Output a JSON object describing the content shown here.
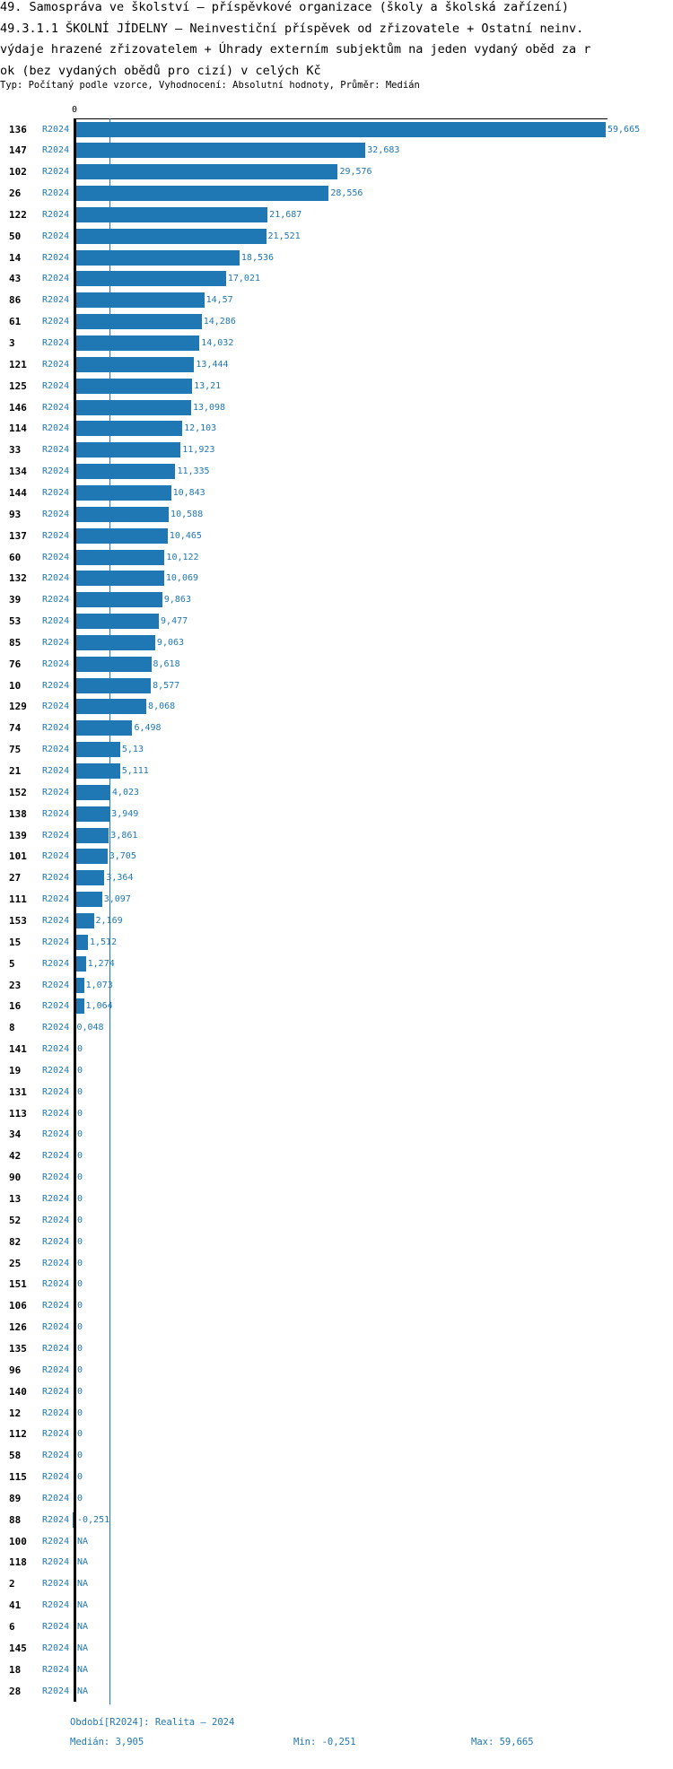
{
  "title_lines": [
    "49. Samospráva ve školství – příspěvkové organizace (školy a školská zařízení)",
    "49.3.1.1 ŠKOLNÍ JÍDELNY – Neinvestiční příspěvek od zřizovatele + Ostatní neinv.",
    "výdaje hrazené zřizovatelem + Úhrady externím subjektům na jeden vydaný oběd za r",
    "ok (bez vydaných obědů pro cizí) v celých Kč"
  ],
  "subtitle": "Typ: Počítaný podle vzorce, Vyhodnocení: Absolutní hodnoty, Průměr: Medián",
  "footer": {
    "period": "Období[R2024]: Realita – 2024",
    "median": "Medián: 3,905",
    "min": "Min: -0,251",
    "max": "Max: 59,665"
  },
  "chart_data": {
    "type": "bar",
    "orientation": "horizontal",
    "axis_zero_label": "0",
    "xlim": [
      -0.251,
      59.665
    ],
    "median": 3.905,
    "colors": {
      "bar": "#1f77b4",
      "text": "#1f77b4"
    },
    "period": "R2024",
    "rows": [
      {
        "id": "136",
        "value": 59.665,
        "label": "59,665"
      },
      {
        "id": "147",
        "value": 32.683,
        "label": "32,683"
      },
      {
        "id": "102",
        "value": 29.576,
        "label": "29,576"
      },
      {
        "id": "26",
        "value": 28.556,
        "label": "28,556"
      },
      {
        "id": "122",
        "value": 21.687,
        "label": "21,687"
      },
      {
        "id": "50",
        "value": 21.521,
        "label": "21,521"
      },
      {
        "id": "14",
        "value": 18.536,
        "label": "18,536"
      },
      {
        "id": "43",
        "value": 17.021,
        "label": "17,021"
      },
      {
        "id": "86",
        "value": 14.57,
        "label": "14,57"
      },
      {
        "id": "61",
        "value": 14.286,
        "label": "14,286"
      },
      {
        "id": "3",
        "value": 14.032,
        "label": "14,032"
      },
      {
        "id": "121",
        "value": 13.444,
        "label": "13,444"
      },
      {
        "id": "125",
        "value": 13.21,
        "label": "13,21"
      },
      {
        "id": "146",
        "value": 13.098,
        "label": "13,098"
      },
      {
        "id": "114",
        "value": 12.103,
        "label": "12,103"
      },
      {
        "id": "33",
        "value": 11.923,
        "label": "11,923"
      },
      {
        "id": "134",
        "value": 11.335,
        "label": "11,335"
      },
      {
        "id": "144",
        "value": 10.843,
        "label": "10,843"
      },
      {
        "id": "93",
        "value": 10.588,
        "label": "10,588"
      },
      {
        "id": "137",
        "value": 10.465,
        "label": "10,465"
      },
      {
        "id": "60",
        "value": 10.122,
        "label": "10,122"
      },
      {
        "id": "132",
        "value": 10.069,
        "label": "10,069"
      },
      {
        "id": "39",
        "value": 9.863,
        "label": "9,863"
      },
      {
        "id": "53",
        "value": 9.477,
        "label": "9,477"
      },
      {
        "id": "85",
        "value": 9.063,
        "label": "9,063"
      },
      {
        "id": "76",
        "value": 8.618,
        "label": "8,618"
      },
      {
        "id": "10",
        "value": 8.577,
        "label": "8,577"
      },
      {
        "id": "129",
        "value": 8.068,
        "label": "8,068"
      },
      {
        "id": "74",
        "value": 6.498,
        "label": "6,498"
      },
      {
        "id": "75",
        "value": 5.13,
        "label": "5,13"
      },
      {
        "id": "21",
        "value": 5.111,
        "label": "5,111"
      },
      {
        "id": "152",
        "value": 4.023,
        "label": "4,023"
      },
      {
        "id": "138",
        "value": 3.949,
        "label": "3,949"
      },
      {
        "id": "139",
        "value": 3.861,
        "label": "3,861"
      },
      {
        "id": "101",
        "value": 3.705,
        "label": "3,705"
      },
      {
        "id": "27",
        "value": 3.364,
        "label": "3,364"
      },
      {
        "id": "111",
        "value": 3.097,
        "label": "3,097"
      },
      {
        "id": "153",
        "value": 2.169,
        "label": "2,169"
      },
      {
        "id": "15",
        "value": 1.512,
        "label": "1,512"
      },
      {
        "id": "5",
        "value": 1.274,
        "label": "1,274"
      },
      {
        "id": "23",
        "value": 1.073,
        "label": "1,073"
      },
      {
        "id": "16",
        "value": 1.064,
        "label": "1,064"
      },
      {
        "id": "8",
        "value": 0.048,
        "label": "0,048"
      },
      {
        "id": "141",
        "value": 0,
        "label": "0"
      },
      {
        "id": "19",
        "value": 0,
        "label": "0"
      },
      {
        "id": "131",
        "value": 0,
        "label": "0"
      },
      {
        "id": "113",
        "value": 0,
        "label": "0"
      },
      {
        "id": "34",
        "value": 0,
        "label": "0"
      },
      {
        "id": "42",
        "value": 0,
        "label": "0"
      },
      {
        "id": "90",
        "value": 0,
        "label": "0"
      },
      {
        "id": "13",
        "value": 0,
        "label": "0"
      },
      {
        "id": "52",
        "value": 0,
        "label": "0"
      },
      {
        "id": "82",
        "value": 0,
        "label": "0"
      },
      {
        "id": "25",
        "value": 0,
        "label": "0"
      },
      {
        "id": "151",
        "value": 0,
        "label": "0"
      },
      {
        "id": "106",
        "value": 0,
        "label": "0"
      },
      {
        "id": "126",
        "value": 0,
        "label": "0"
      },
      {
        "id": "135",
        "value": 0,
        "label": "0"
      },
      {
        "id": "96",
        "value": 0,
        "label": "0"
      },
      {
        "id": "140",
        "value": 0,
        "label": "0"
      },
      {
        "id": "12",
        "value": 0,
        "label": "0"
      },
      {
        "id": "112",
        "value": 0,
        "label": "0"
      },
      {
        "id": "58",
        "value": 0,
        "label": "0"
      },
      {
        "id": "115",
        "value": 0,
        "label": "0"
      },
      {
        "id": "89",
        "value": 0,
        "label": "0"
      },
      {
        "id": "88",
        "value": -0.251,
        "label": "-0,251"
      },
      {
        "id": "100",
        "value": null,
        "label": "NA"
      },
      {
        "id": "118",
        "value": null,
        "label": "NA"
      },
      {
        "id": "2",
        "value": null,
        "label": "NA"
      },
      {
        "id": "41",
        "value": null,
        "label": "NA"
      },
      {
        "id": "6",
        "value": null,
        "label": "NA"
      },
      {
        "id": "145",
        "value": null,
        "label": "NA"
      },
      {
        "id": "18",
        "value": null,
        "label": "NA"
      },
      {
        "id": "28",
        "value": null,
        "label": "NA"
      }
    ]
  }
}
